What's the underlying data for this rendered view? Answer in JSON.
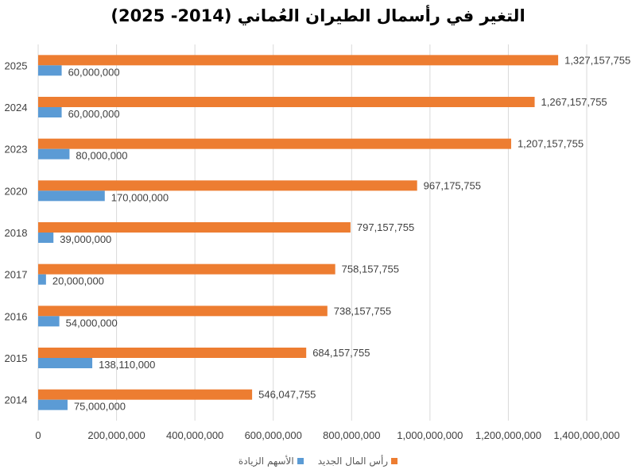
{
  "chart_data": {
    "type": "bar",
    "orientation": "horizontal",
    "title": "التغير في رأسمال الطيران العُماني (2014- 2025)",
    "categories": [
      "2025",
      "2024",
      "2023",
      "2020",
      "2018",
      "2017",
      "2016",
      "2015",
      "2014"
    ],
    "series": [
      {
        "name": "رأس المال الجديد",
        "color": "#ED7D31",
        "values": [
          1327157755,
          1267157755,
          1207157755,
          967175755,
          797157755,
          758157755,
          738157755,
          684157755,
          546047755
        ],
        "labels": [
          "1,327,157,755",
          "1,267,157,755",
          "1,207,157,755",
          "967,175,755",
          "797,157,755",
          "758,157,755",
          "738,157,755",
          "684,157,755",
          "546,047,755"
        ]
      },
      {
        "name": "الأسهم الزيادة",
        "color": "#5B9BD5",
        "values": [
          60000000,
          60000000,
          80000000,
          170000000,
          39000000,
          20000000,
          54000000,
          138110000,
          75000000
        ],
        "labels": [
          "60,000,000",
          "60,000,000",
          "80,000,000",
          "170,000,000",
          "39,000,000",
          "20,000,000",
          "54,000,000",
          "138,110,000",
          "75,000,000"
        ]
      }
    ],
    "xlim": [
      0,
      1400000000
    ],
    "xticks": [
      "0",
      "200,000,000",
      "400,000,000",
      "600,000,000",
      "800,000,000",
      "1,000,000,000",
      "1,200,000,000",
      "1,400,000,000"
    ],
    "grid": true,
    "legend": "bottom"
  }
}
